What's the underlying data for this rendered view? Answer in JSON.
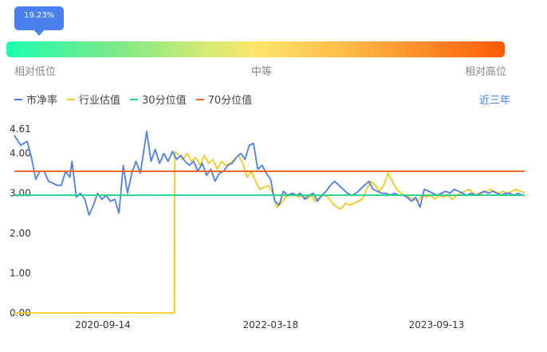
{
  "gauge": {
    "tooltip": "19.23%",
    "percentile": 0.1923,
    "low_label": "相对低位",
    "mid_label": "中等",
    "high_label": "相对高位",
    "colors": [
      "#1dfdb0",
      "#fde56a",
      "#fc5a08"
    ]
  },
  "legend": {
    "items": [
      {
        "label": "市净率",
        "color": "#4a7ff0"
      },
      {
        "label": "行业估值",
        "color": "#f6c81e"
      },
      {
        "label": "30分位值",
        "color": "#22d38a"
      },
      {
        "label": "70分位值",
        "color": "#f0601e"
      }
    ],
    "period": "近三年"
  },
  "chart_data": {
    "type": "line",
    "ylim": [
      0,
      4.61
    ],
    "y_ticks": [
      "4.61",
      "4.00",
      "3.00",
      "2.00",
      "1.00",
      "0.00"
    ],
    "x_tick_labels": [
      "2020-09-14",
      "2022-03-18",
      "2023-09-13"
    ],
    "x_range": [
      "2019-11-29",
      "2024-06-28"
    ],
    "series": [
      {
        "name": "市净率",
        "color": "#4a7ff0",
        "points": [
          [
            "2019-11-29",
            4.45
          ],
          [
            "2019-12-20",
            4.2
          ],
          [
            "2020-01-10",
            4.3
          ],
          [
            "2020-01-24",
            3.9
          ],
          [
            "2020-02-07",
            3.35
          ],
          [
            "2020-02-21",
            3.55
          ],
          [
            "2020-03-06",
            3.55
          ],
          [
            "2020-03-20",
            3.3
          ],
          [
            "2020-04-03",
            3.25
          ],
          [
            "2020-04-17",
            3.2
          ],
          [
            "2020-05-01",
            3.2
          ],
          [
            "2020-05-15",
            3.55
          ],
          [
            "2020-05-29",
            3.4
          ],
          [
            "2020-06-05",
            3.8
          ],
          [
            "2020-06-19",
            2.9
          ],
          [
            "2020-07-03",
            3.0
          ],
          [
            "2020-07-17",
            2.85
          ],
          [
            "2020-07-31",
            2.45
          ],
          [
            "2020-08-14",
            2.7
          ],
          [
            "2020-08-28",
            3.0
          ],
          [
            "2020-09-11",
            2.85
          ],
          [
            "2020-09-25",
            2.95
          ],
          [
            "2020-10-09",
            2.8
          ],
          [
            "2020-10-23",
            2.85
          ],
          [
            "2020-11-06",
            2.5
          ],
          [
            "2020-11-20",
            3.7
          ],
          [
            "2020-12-04",
            3.0
          ],
          [
            "2020-12-18",
            3.5
          ],
          [
            "2021-01-01",
            3.8
          ],
          [
            "2021-01-15",
            3.5
          ],
          [
            "2021-02-05",
            4.55
          ],
          [
            "2021-02-19",
            3.8
          ],
          [
            "2021-03-05",
            4.1
          ],
          [
            "2021-03-19",
            3.75
          ],
          [
            "2021-04-02",
            4.0
          ],
          [
            "2021-04-16",
            3.8
          ],
          [
            "2021-04-30",
            4.05
          ],
          [
            "2021-05-14",
            3.85
          ],
          [
            "2021-05-28",
            3.95
          ],
          [
            "2021-06-11",
            3.8
          ],
          [
            "2021-06-25",
            3.7
          ],
          [
            "2021-07-09",
            3.8
          ],
          [
            "2021-07-23",
            3.55
          ],
          [
            "2021-08-06",
            3.75
          ],
          [
            "2021-08-20",
            3.45
          ],
          [
            "2021-09-03",
            3.6
          ],
          [
            "2021-09-17",
            3.3
          ],
          [
            "2021-10-01",
            3.5
          ],
          [
            "2021-10-15",
            3.55
          ],
          [
            "2021-10-29",
            3.7
          ],
          [
            "2021-11-12",
            3.75
          ],
          [
            "2021-11-26",
            3.9
          ],
          [
            "2021-12-10",
            4.0
          ],
          [
            "2021-12-24",
            3.85
          ],
          [
            "2022-01-07",
            4.2
          ],
          [
            "2022-01-21",
            4.25
          ],
          [
            "2022-02-04",
            3.6
          ],
          [
            "2022-02-18",
            3.7
          ],
          [
            "2022-03-04",
            3.5
          ],
          [
            "2022-03-18",
            3.35
          ],
          [
            "2022-04-01",
            2.8
          ],
          [
            "2022-04-15",
            2.7
          ],
          [
            "2022-04-29",
            3.05
          ],
          [
            "2022-05-13",
            2.95
          ],
          [
            "2022-05-27",
            3.0
          ],
          [
            "2022-06-10",
            2.95
          ],
          [
            "2022-06-24",
            3.0
          ],
          [
            "2022-07-08",
            2.85
          ],
          [
            "2022-07-22",
            2.95
          ],
          [
            "2022-08-05",
            3.0
          ],
          [
            "2022-08-19",
            2.8
          ],
          [
            "2022-09-02",
            2.95
          ],
          [
            "2022-09-16",
            3.05
          ],
          [
            "2022-09-30",
            3.2
          ],
          [
            "2022-10-14",
            3.3
          ],
          [
            "2022-10-28",
            3.2
          ],
          [
            "2022-11-11",
            3.1
          ],
          [
            "2022-11-25",
            3.0
          ],
          [
            "2022-12-09",
            2.95
          ],
          [
            "2022-12-23",
            3.0
          ],
          [
            "2023-01-06",
            3.1
          ],
          [
            "2023-01-20",
            3.2
          ],
          [
            "2023-02-03",
            3.3
          ],
          [
            "2023-02-17",
            3.1
          ],
          [
            "2023-03-03",
            3.05
          ],
          [
            "2023-03-17",
            3.0
          ],
          [
            "2023-03-31",
            3.0
          ],
          [
            "2023-04-14",
            2.95
          ],
          [
            "2023-04-28",
            3.0
          ],
          [
            "2023-05-12",
            2.95
          ],
          [
            "2023-05-26",
            2.95
          ],
          [
            "2023-06-09",
            2.9
          ],
          [
            "2023-06-23",
            2.8
          ],
          [
            "2023-07-07",
            2.9
          ],
          [
            "2023-07-21",
            2.65
          ],
          [
            "2023-08-04",
            3.1
          ],
          [
            "2023-08-18",
            3.05
          ],
          [
            "2023-09-01",
            3.0
          ],
          [
            "2023-09-15",
            2.95
          ],
          [
            "2023-09-29",
            3.0
          ],
          [
            "2023-10-13",
            3.05
          ],
          [
            "2023-10-27",
            3.0
          ],
          [
            "2023-11-10",
            3.1
          ],
          [
            "2023-11-24",
            3.05
          ],
          [
            "2023-12-08",
            3.0
          ],
          [
            "2023-12-22",
            2.95
          ],
          [
            "2024-01-05",
            3.0
          ],
          [
            "2024-01-19",
            2.95
          ],
          [
            "2024-02-02",
            3.0
          ],
          [
            "2024-02-16",
            3.05
          ],
          [
            "2024-03-01",
            3.0
          ],
          [
            "2024-03-15",
            3.05
          ],
          [
            "2024-03-29",
            3.0
          ],
          [
            "2024-04-12",
            2.95
          ],
          [
            "2024-04-26",
            3.0
          ],
          [
            "2024-05-10",
            3.0
          ],
          [
            "2024-05-24",
            2.95
          ],
          [
            "2024-06-07",
            3.0
          ],
          [
            "2024-06-21",
            2.95
          ],
          [
            "2024-06-28",
            2.95
          ]
        ]
      },
      {
        "name": "行业估值",
        "color": "#f6c81e",
        "points": [
          [
            "2019-11-29",
            0
          ],
          [
            "2021-05-07",
            0
          ],
          [
            "2021-05-08",
            4.05
          ],
          [
            "2021-05-21",
            3.95
          ],
          [
            "2021-06-04",
            3.85
          ],
          [
            "2021-06-18",
            4.0
          ],
          [
            "2021-07-02",
            3.8
          ],
          [
            "2021-07-16",
            3.9
          ],
          [
            "2021-07-30",
            3.7
          ],
          [
            "2021-08-13",
            3.95
          ],
          [
            "2021-08-27",
            3.75
          ],
          [
            "2021-09-10",
            3.85
          ],
          [
            "2021-09-24",
            3.6
          ],
          [
            "2021-10-08",
            3.8
          ],
          [
            "2021-10-22",
            3.7
          ],
          [
            "2021-11-05",
            3.75
          ],
          [
            "2021-11-19",
            3.85
          ],
          [
            "2021-12-03",
            3.95
          ],
          [
            "2021-12-17",
            3.75
          ],
          [
            "2021-12-31",
            3.4
          ],
          [
            "2022-01-14",
            3.55
          ],
          [
            "2022-01-28",
            3.3
          ],
          [
            "2022-02-11",
            3.1
          ],
          [
            "2022-02-25",
            3.15
          ],
          [
            "2022-03-11",
            3.2
          ],
          [
            "2022-03-25",
            3.0
          ],
          [
            "2022-04-08",
            2.65
          ],
          [
            "2022-04-22",
            2.75
          ],
          [
            "2022-05-06",
            2.9
          ],
          [
            "2022-05-20",
            2.95
          ],
          [
            "2022-06-03",
            3.0
          ],
          [
            "2022-06-17",
            2.9
          ],
          [
            "2022-07-01",
            2.95
          ],
          [
            "2022-07-15",
            2.85
          ],
          [
            "2022-07-29",
            2.95
          ],
          [
            "2022-08-12",
            2.8
          ],
          [
            "2022-08-26",
            2.9
          ],
          [
            "2022-09-09",
            2.95
          ],
          [
            "2022-09-23",
            2.9
          ],
          [
            "2022-10-07",
            2.75
          ],
          [
            "2022-10-21",
            2.65
          ],
          [
            "2022-11-04",
            2.6
          ],
          [
            "2022-11-18",
            2.75
          ],
          [
            "2022-12-02",
            2.7
          ],
          [
            "2022-12-16",
            2.75
          ],
          [
            "2022-12-30",
            2.8
          ],
          [
            "2023-01-13",
            2.85
          ],
          [
            "2023-01-27",
            3.1
          ],
          [
            "2023-02-10",
            3.3
          ],
          [
            "2023-02-24",
            3.2
          ],
          [
            "2023-03-10",
            3.05
          ],
          [
            "2023-03-24",
            3.2
          ],
          [
            "2023-04-07",
            3.5
          ],
          [
            "2023-04-21",
            3.3
          ],
          [
            "2023-05-05",
            3.1
          ],
          [
            "2023-05-19",
            3.0
          ],
          [
            "2023-06-02",
            2.95
          ],
          [
            "2023-06-16",
            2.9
          ],
          [
            "2023-06-30",
            2.85
          ],
          [
            "2023-07-14",
            2.8
          ],
          [
            "2023-07-28",
            2.95
          ],
          [
            "2023-08-11",
            2.9
          ],
          [
            "2023-08-25",
            2.95
          ],
          [
            "2023-09-08",
            2.85
          ],
          [
            "2023-09-22",
            2.95
          ],
          [
            "2023-10-06",
            2.9
          ],
          [
            "2023-10-20",
            2.95
          ],
          [
            "2023-11-03",
            2.85
          ],
          [
            "2023-11-17",
            2.95
          ],
          [
            "2023-12-01",
            3.0
          ],
          [
            "2023-12-15",
            3.05
          ],
          [
            "2023-12-29",
            3.1
          ],
          [
            "2024-01-12",
            3.0
          ],
          [
            "2024-01-26",
            2.95
          ],
          [
            "2024-02-09",
            3.0
          ],
          [
            "2024-02-23",
            3.05
          ],
          [
            "2024-03-08",
            3.1
          ],
          [
            "2024-03-22",
            3.05
          ],
          [
            "2024-04-05",
            3.0
          ],
          [
            "2024-04-19",
            3.05
          ],
          [
            "2024-05-03",
            3.0
          ],
          [
            "2024-05-17",
            3.05
          ],
          [
            "2024-05-31",
            3.1
          ],
          [
            "2024-06-14",
            3.05
          ],
          [
            "2024-06-28",
            3.0
          ]
        ]
      }
    ],
    "reference_lines": [
      {
        "name": "30分位值",
        "value": 2.95,
        "color": "#22d38a"
      },
      {
        "name": "70分位值",
        "value": 3.55,
        "color": "#f0601e"
      }
    ]
  }
}
